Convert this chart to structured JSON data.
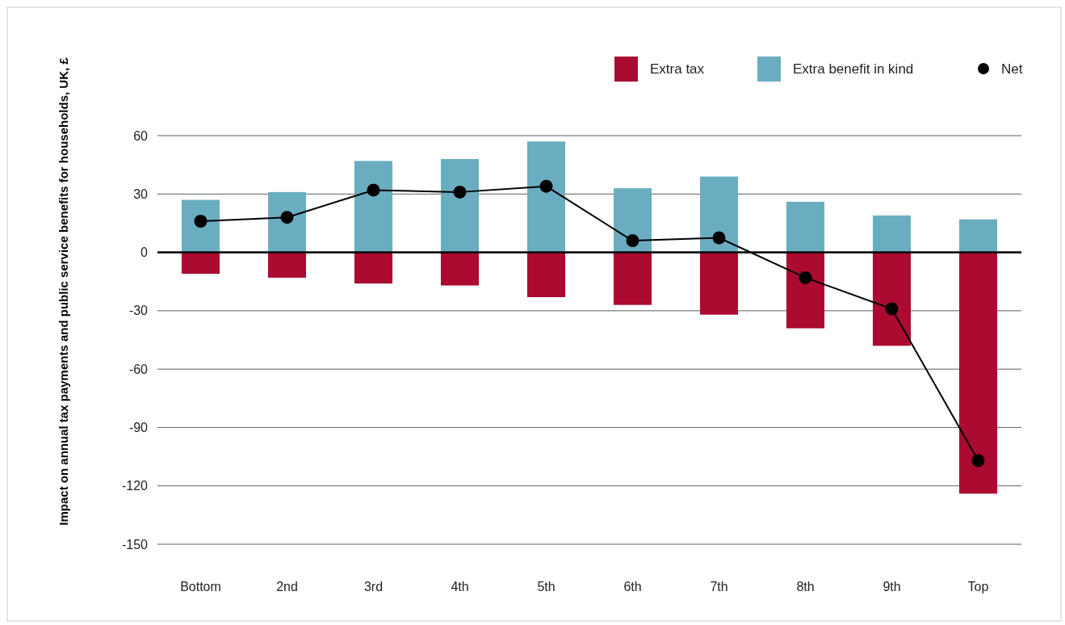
{
  "chart_data": {
    "type": "bar",
    "stacked": true,
    "ylabel": "Impact on annual tax payments and public service benefits for households, UK, £",
    "categories": [
      "Bottom",
      "2nd",
      "3rd",
      "4th",
      "5th",
      "6th",
      "7th",
      "8th",
      "9th",
      "Top"
    ],
    "series": [
      {
        "name": "Extra tax",
        "color": "#ab0b31",
        "values": [
          -11,
          -13,
          -16,
          -17,
          -23,
          -27,
          -32,
          -39,
          -48,
          -124
        ]
      },
      {
        "name": "Extra benefit in kind",
        "color": "#6badc0",
        "values": [
          27,
          31,
          47,
          48,
          57,
          33,
          39,
          26,
          19,
          17
        ]
      },
      {
        "name": "Net",
        "type": "line",
        "color": "#000000",
        "marker": "circle",
        "values": [
          16,
          18,
          32,
          31,
          34,
          6,
          7.5,
          -13,
          -29,
          -107
        ]
      }
    ],
    "ylim": [
      -150,
      60
    ],
    "yticks": [
      -150,
      -120,
      -90,
      -60,
      -30,
      0,
      30,
      60
    ],
    "grid": "y",
    "legend": "top right"
  }
}
